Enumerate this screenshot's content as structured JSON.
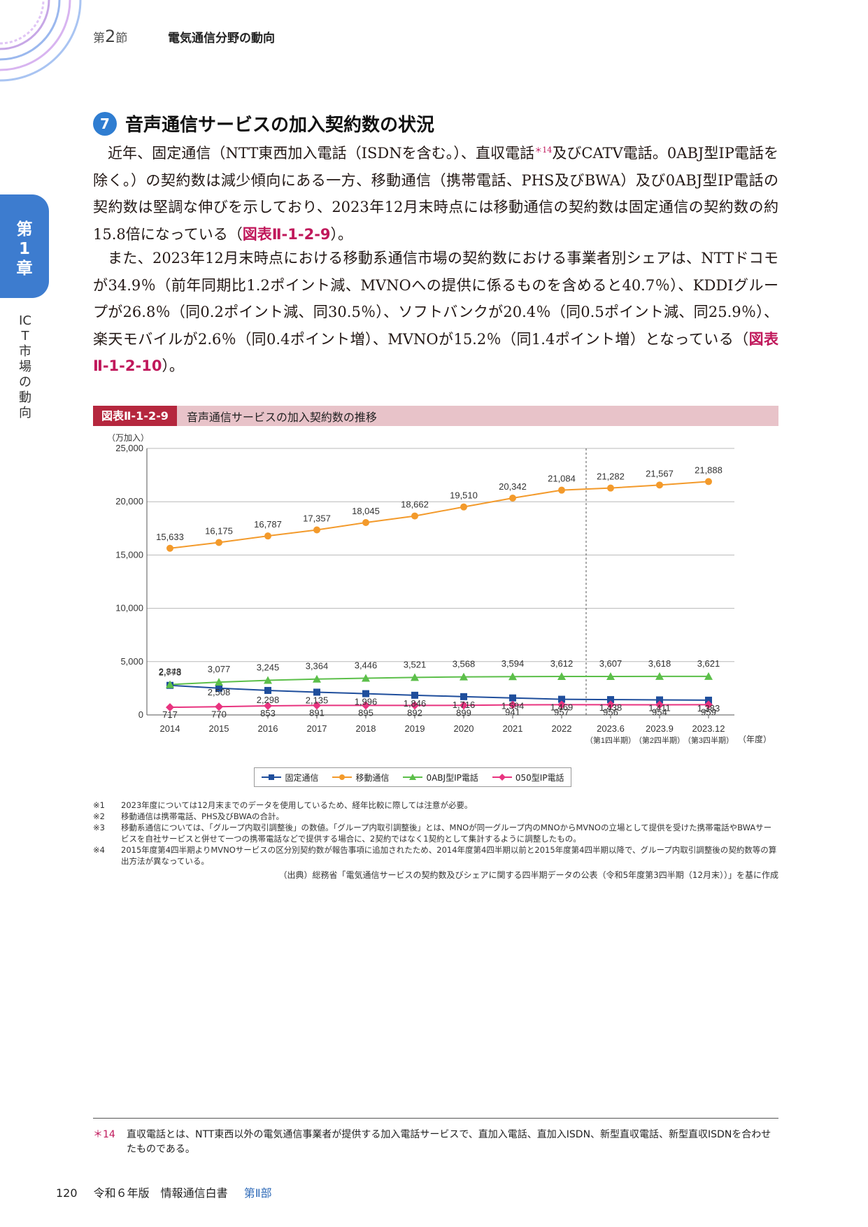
{
  "header": {
    "section_prefix": "第",
    "section_num": "2",
    "section_suffix": "節",
    "title": "電気通信分野の動向"
  },
  "chapter": {
    "tab_top": "第",
    "tab_num": "1",
    "tab_bottom": "章",
    "side_title": "ICT市場の動向"
  },
  "section": {
    "num": "7",
    "title": "音声通信サービスの加入契約数の状況"
  },
  "body": {
    "p1": "近年、固定通信（NTT東西加入電話（ISDNを含む。）、直収電話",
    "p1_sup": "＊14",
    "p1b": "及びCATV電話。0ABJ型IP電話を除く。）の契約数は減少傾向にある一方、移動通信（携帯電話、PHS及びBWA）及び0ABJ型IP電話の契約数は堅調な伸びを示しており、2023年12月末時点には移動通信の契約数は固定通信の契約数の約15.8倍になっている（",
    "p1_ref": "図表Ⅱ-1-2-9",
    "p1_end": "）。",
    "p2": "また、2023年12月末時点における移動系通信市場の契約数における事業者別シェアは、NTTドコモが34.9％（前年同期比1.2ポイント減、MVNOへの提供に係るものを含めると40.7％）、KDDIグループが26.8％（同0.2ポイント減、同30.5％）、ソフトバンクが20.4％（同0.5ポイント減、同25.9％）、楽天モバイルが2.6％（同0.4ポイント増）、MVNOが15.2％（同1.4ポイント増）となっている（",
    "p2_ref": "図表Ⅱ-1-2-10",
    "p2_end": "）。"
  },
  "figure": {
    "label": "図表Ⅱ-1-2-9",
    "title": "音声通信サービスの加入契約数の推移"
  },
  "chart_data": {
    "type": "line",
    "title": "音声通信サービスの加入契約数の推移",
    "ylabel": "（万加入）",
    "xlabel": "（年度）",
    "ylim": [
      0,
      25000
    ],
    "yticks": [
      "0",
      "5,000",
      "10,000",
      "15,000",
      "20,000",
      "25,000"
    ],
    "categories": [
      "2014",
      "2015",
      "2016",
      "2017",
      "2018",
      "2019",
      "2020",
      "2021",
      "2022",
      "2023.6",
      "2023.9",
      "2023.12"
    ],
    "category_sub": [
      "",
      "",
      "",
      "",
      "",
      "",
      "",
      "",
      "",
      "（第1四半期）",
      "（第2四半期）",
      "（第3四半期）"
    ],
    "series": [
      {
        "name": "固定通信",
        "color": "#1f4e9c",
        "marker": "square",
        "values": [
          2773,
          2508,
          2298,
          2135,
          1996,
          1846,
          1716,
          1594,
          1469,
          1438,
          1411,
          1383
        ],
        "labels": [
          "2,773",
          "2,508",
          "2,298",
          "2,135",
          "1,996",
          "1,846",
          "1,716",
          "1,594",
          "1,469",
          "1,438",
          "1,411",
          "1,383"
        ]
      },
      {
        "name": "移動通信",
        "color": "#f39a2b",
        "marker": "circle",
        "values": [
          15633,
          16175,
          16787,
          17357,
          18045,
          18662,
          19510,
          20342,
          21084,
          21282,
          21567,
          21888
        ],
        "labels": [
          "15,633",
          "16,175",
          "16,787",
          "17,357",
          "18,045",
          "18,662",
          "19,510",
          "20,342",
          "21,084",
          "21,282",
          "21,567",
          "21,888"
        ]
      },
      {
        "name": "0ABJ型IP電話",
        "color": "#5cbf4a",
        "marker": "triangle",
        "values": [
          2848,
          3077,
          3245,
          3364,
          3446,
          3521,
          3568,
          3594,
          3612,
          3607,
          3618,
          3621
        ],
        "labels": [
          "2,848",
          "3,077",
          "3,245",
          "3,364",
          "3,446",
          "3,521",
          "3,568",
          "3,594",
          "3,612",
          "3,607",
          "3,618",
          "3,621"
        ]
      },
      {
        "name": "050型IP電話",
        "color": "#e8337f",
        "marker": "diamond",
        "values": [
          717,
          770,
          853,
          891,
          895,
          892,
          899,
          941,
          957,
          956,
          954,
          959
        ],
        "labels": [
          "717",
          "770",
          "853",
          "891",
          "895",
          "892",
          "899",
          "941",
          "957",
          "956",
          "954",
          "959"
        ]
      }
    ]
  },
  "notes": [
    {
      "key": "※1",
      "text": "2023年度については12月末までのデータを使用しているため、経年比較に際しては注意が必要。"
    },
    {
      "key": "※2",
      "text": "移動通信は携帯電話、PHS及びBWAの合計。"
    },
    {
      "key": "※3",
      "text": "移動系通信については、「グループ内取引調整後」の数値。「グループ内取引調整後」とは、MNOが同一グループ内のMNOからMVNOの立場として提供を受けた携帯電話やBWAサービスを自社サービスと併せて一つの携帯電話などで提供する場合に、2契約ではなく1契約として集計するように調整したもの。"
    },
    {
      "key": "※4",
      "text": "2015年度第4四半期よりMVNOサービスの区分別契約数が報告事項に追加されたため、2014年度第4四半期以前と2015年度第4四半期以降で、グループ内取引調整後の契約数等の算出方法が異なっている。"
    }
  ],
  "source": "（出典）総務省「電気通信サービスの契約数及びシェアに関する四半期データの公表（令和5年度第3四半期（12月末））」を基に作成",
  "footnote": {
    "key": "＊14",
    "text": "直収電話とは、NTT東西以外の電気通信事業者が提供する加入電話サービスで、直加入電話、直加入ISDN、新型直収電話、新型直収ISDNを合わせたものである。"
  },
  "footer": {
    "page": "120",
    "book": "令和６年版　情報通信白書",
    "part": "第Ⅱ部"
  }
}
